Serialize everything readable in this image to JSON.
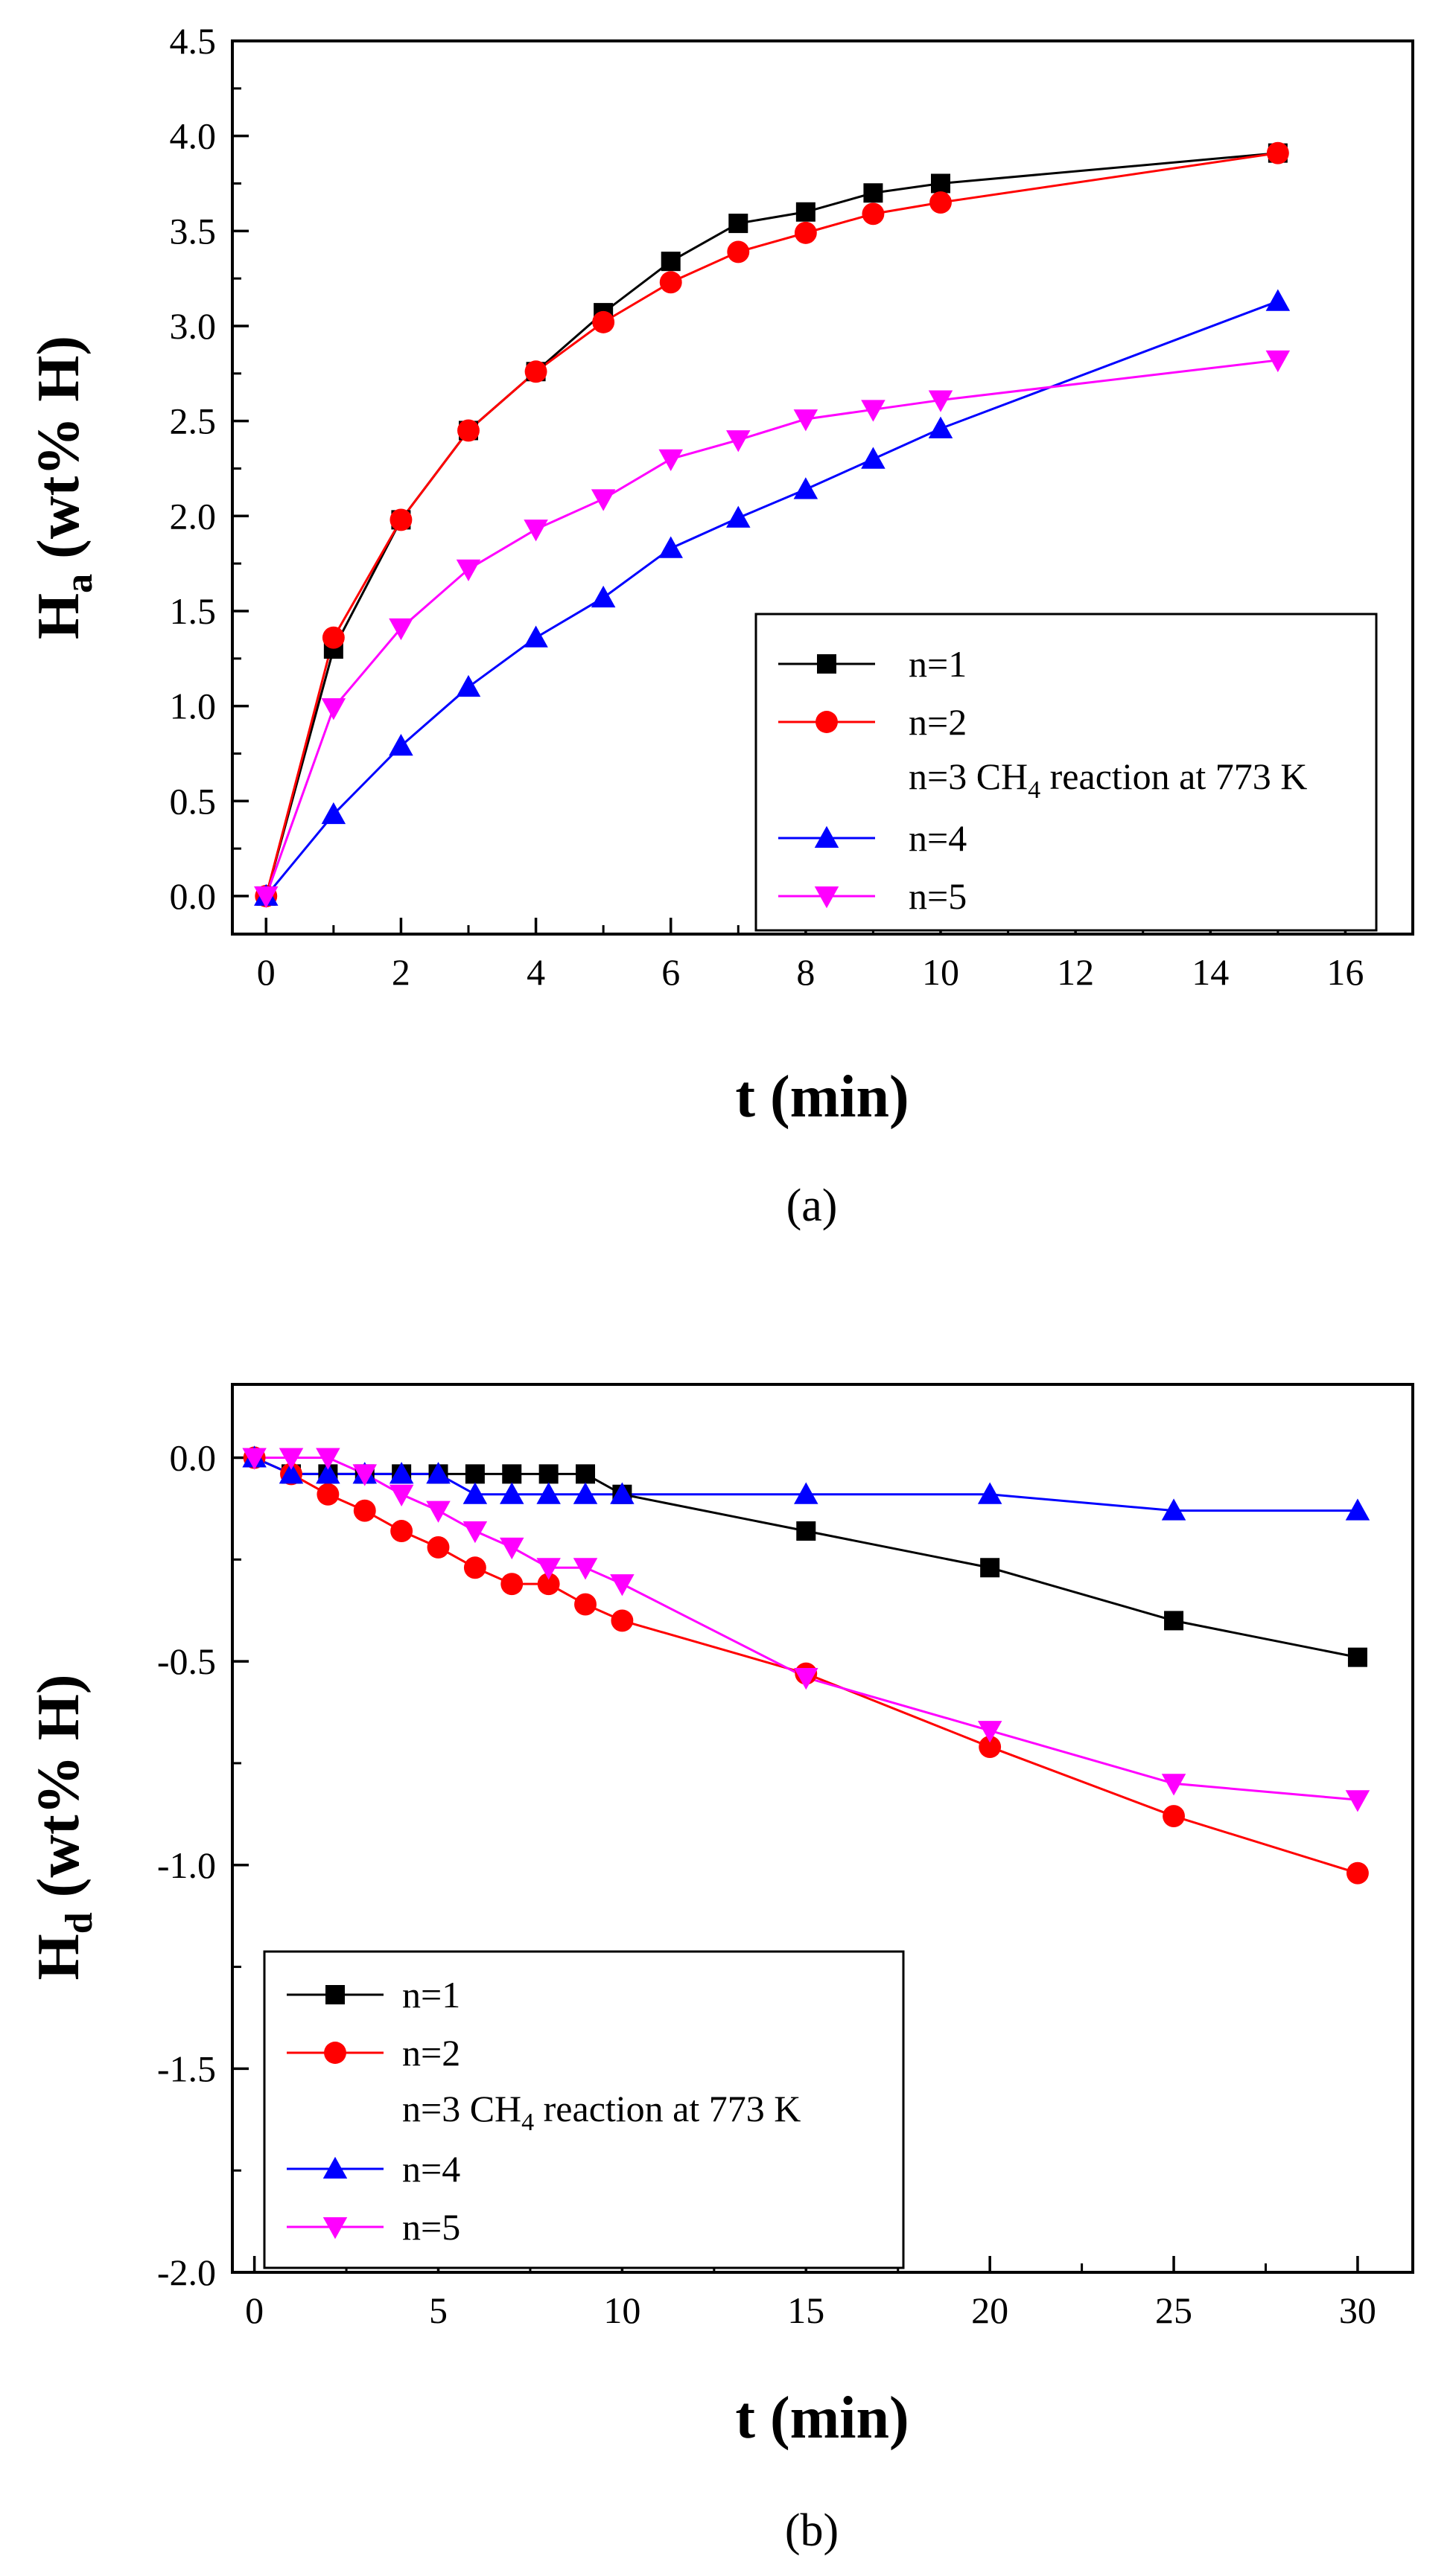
{
  "chart_data": [
    {
      "id": "a",
      "type": "line",
      "caption": "(a)",
      "xlabel": "t (min)",
      "ylabel_main": "H",
      "ylabel_sub": "a",
      "ylabel_rest": " (wt% H)",
      "xlim": [
        -0.5,
        17
      ],
      "ylim": [
        -0.2,
        4.5
      ],
      "xticks": [
        0,
        2,
        4,
        6,
        8,
        10,
        12,
        14,
        16
      ],
      "xtick_labels": [
        "0",
        "2",
        "4",
        "6",
        "8",
        "10",
        "12",
        "14",
        "16"
      ],
      "yticks": [
        0.0,
        0.5,
        1.0,
        1.5,
        2.0,
        2.5,
        3.0,
        3.5,
        4.0,
        4.5
      ],
      "ytick_labels": [
        "0.0",
        "0.5",
        "1.0",
        "1.5",
        "2.0",
        "2.5",
        "3.0",
        "3.5",
        "4.0",
        "4.5"
      ],
      "legend_position": "lower-right",
      "legend_note": {
        "prefix": "n=3 CH",
        "sub": "4",
        "suffix": " reaction at 773 K"
      },
      "series": [
        {
          "name": "n=1",
          "color": "#000000",
          "marker": "square",
          "x": [
            0,
            1,
            2,
            3,
            4,
            5,
            6,
            7,
            8,
            9,
            10,
            15
          ],
          "y": [
            0.0,
            1.3,
            1.98,
            2.45,
            2.76,
            3.07,
            3.34,
            3.54,
            3.6,
            3.7,
            3.75,
            3.91
          ]
        },
        {
          "name": "n=2",
          "color": "#ff0000",
          "marker": "circle",
          "x": [
            0,
            1,
            2,
            3,
            4,
            5,
            6,
            7,
            8,
            9,
            10,
            15
          ],
          "y": [
            0.0,
            1.36,
            1.98,
            2.45,
            2.76,
            3.02,
            3.23,
            3.39,
            3.49,
            3.59,
            3.65,
            3.91
          ]
        },
        {
          "name": "n=4",
          "color": "#0000ff",
          "marker": "triangle-up",
          "x": [
            0,
            1,
            2,
            3,
            4,
            5,
            6,
            7,
            8,
            9,
            10,
            15
          ],
          "y": [
            0.0,
            0.43,
            0.79,
            1.1,
            1.36,
            1.57,
            1.83,
            1.99,
            2.14,
            2.3,
            2.46,
            3.13
          ]
        },
        {
          "name": "n=5",
          "color": "#ff00ff",
          "marker": "triangle-down",
          "x": [
            0,
            1,
            2,
            3,
            4,
            5,
            6,
            7,
            8,
            9,
            10,
            15
          ],
          "y": [
            0.0,
            0.99,
            1.41,
            1.72,
            1.93,
            2.09,
            2.3,
            2.4,
            2.51,
            2.56,
            2.61,
            2.82
          ]
        }
      ]
    },
    {
      "id": "b",
      "type": "line",
      "caption": "(b)",
      "xlabel": "t (min)",
      "ylabel_main": "H",
      "ylabel_sub": "d",
      "ylabel_rest": " (wt% H)",
      "xlim": [
        -0.6,
        31.5
      ],
      "ylim": [
        -2.0,
        0.18
      ],
      "xticks": [
        0,
        5,
        10,
        15,
        20,
        25,
        30
      ],
      "xtick_labels": [
        "0",
        "5",
        "10",
        "15",
        "20",
        "25",
        "30"
      ],
      "yticks": [
        0.0,
        -0.5,
        -1.0,
        -1.5,
        -2.0
      ],
      "ytick_labels": [
        "0.0",
        "-0.5",
        "-1.0",
        "-1.5",
        "-2.0"
      ],
      "legend_position": "lower-left",
      "legend_note": {
        "prefix": "n=3 CH",
        "sub": "4",
        "suffix": " reaction at 773 K"
      },
      "series": [
        {
          "name": "n=1",
          "color": "#000000",
          "marker": "square",
          "x": [
            0,
            1,
            2,
            3,
            4,
            5,
            6,
            7,
            8,
            9,
            10,
            15,
            20,
            25,
            30
          ],
          "y": [
            0.0,
            -0.04,
            -0.04,
            -0.04,
            -0.04,
            -0.04,
            -0.04,
            -0.04,
            -0.04,
            -0.04,
            -0.09,
            -0.18,
            -0.27,
            -0.4,
            -0.49
          ]
        },
        {
          "name": "n=2",
          "color": "#ff0000",
          "marker": "circle",
          "x": [
            0,
            1,
            2,
            3,
            4,
            5,
            6,
            7,
            8,
            9,
            10,
            15,
            20,
            25,
            30
          ],
          "y": [
            0.0,
            -0.04,
            -0.09,
            -0.13,
            -0.18,
            -0.22,
            -0.27,
            -0.31,
            -0.31,
            -0.36,
            -0.4,
            -0.53,
            -0.71,
            -0.88,
            -1.02
          ]
        },
        {
          "name": "n=4",
          "color": "#0000ff",
          "marker": "triangle-up",
          "x": [
            0,
            1,
            2,
            3,
            4,
            5,
            6,
            7,
            8,
            9,
            10,
            15,
            20,
            25,
            30
          ],
          "y": [
            0.0,
            -0.04,
            -0.04,
            -0.04,
            -0.04,
            -0.04,
            -0.09,
            -0.09,
            -0.09,
            -0.09,
            -0.09,
            -0.09,
            -0.09,
            -0.13,
            -0.13
          ]
        },
        {
          "name": "n=5",
          "color": "#ff00ff",
          "marker": "triangle-down",
          "x": [
            0,
            1,
            2,
            3,
            4,
            5,
            6,
            7,
            8,
            9,
            10,
            15,
            20,
            25,
            30
          ],
          "y": [
            0.0,
            0.0,
            0.0,
            -0.04,
            -0.09,
            -0.13,
            -0.18,
            -0.22,
            -0.27,
            -0.27,
            -0.31,
            -0.54,
            -0.67,
            -0.8,
            -0.84
          ]
        }
      ]
    }
  ]
}
